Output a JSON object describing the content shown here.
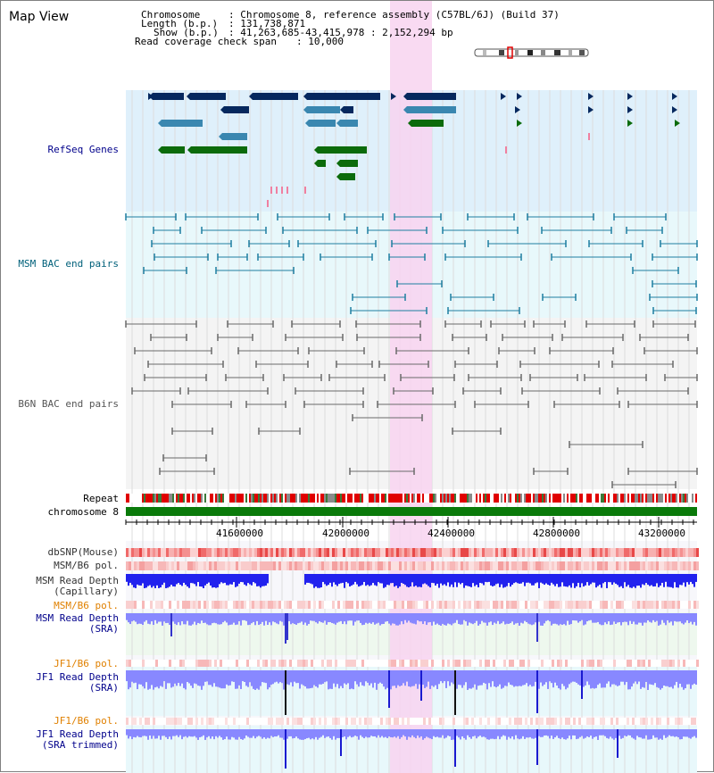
{
  "title": "Map View",
  "info": {
    "chromosome_label": "Chromosome",
    "chromosome_value": ": Chromosome 8, reference assembly (C57BL/6J) (Build 37)",
    "length_label": "Length (b.p.)",
    "length_value": ": 131,738,871",
    "show_label": "Show (b.p.)",
    "show_value": ": 41,263,685-43,415,978 : 2,152,294 bp",
    "coverage_label": "Read coverage check span",
    "coverage_value": ": 10,000"
  },
  "tracks": {
    "refseq": "RefSeq Genes",
    "msm_bac": "MSM BAC end pairs",
    "b6n_bac": "B6N BAC end pairs",
    "repeat": "Repeat",
    "chromosome": "chromosome 8",
    "dbsnp": "dbSNP(Mouse)",
    "msm_b6_pol_1": "MSM/B6 pol.",
    "msm_depth_cap_1": "MSM Read Depth",
    "msm_depth_cap_2": "(Capillary)",
    "msm_b6_pol_2": "MSM/B6 pol.",
    "msm_depth_sra_1": "MSM Read Depth",
    "msm_depth_sra_2": "(SRA)",
    "jf1_b6_pol_1": "JF1/B6 pol.",
    "jf1_depth_sra_1": "JF1 Read Depth",
    "jf1_depth_sra_2": "(SRA)",
    "jf1_b6_pol_2": "JF1/B6 pol.",
    "jf1_depth_trim_1": "JF1 Read Depth",
    "jf1_depth_trim_2": "(SRA trimmed)"
  },
  "axis": {
    "ticks": [
      "41600000",
      "42000000",
      "42400000",
      "42800000",
      "43200000"
    ]
  },
  "colors": {
    "refseq_bg": "#dff0fb",
    "msm_bg": "#e8f8fb",
    "b6n_bg": "#f4f4f4",
    "highlight": "#f8d4f0",
    "gene_dark": "#06285e",
    "gene_mid": "#3a87b0",
    "gene_green": "#0b6b0b",
    "bac_teal": "#1e7ea0",
    "bac_gray": "#6a6a6a",
    "repeat_red": "#e00000",
    "chrom_green": "#0a7a0a",
    "depth_blue": "#2222ee",
    "depth_light": "#8888ff"
  }
}
